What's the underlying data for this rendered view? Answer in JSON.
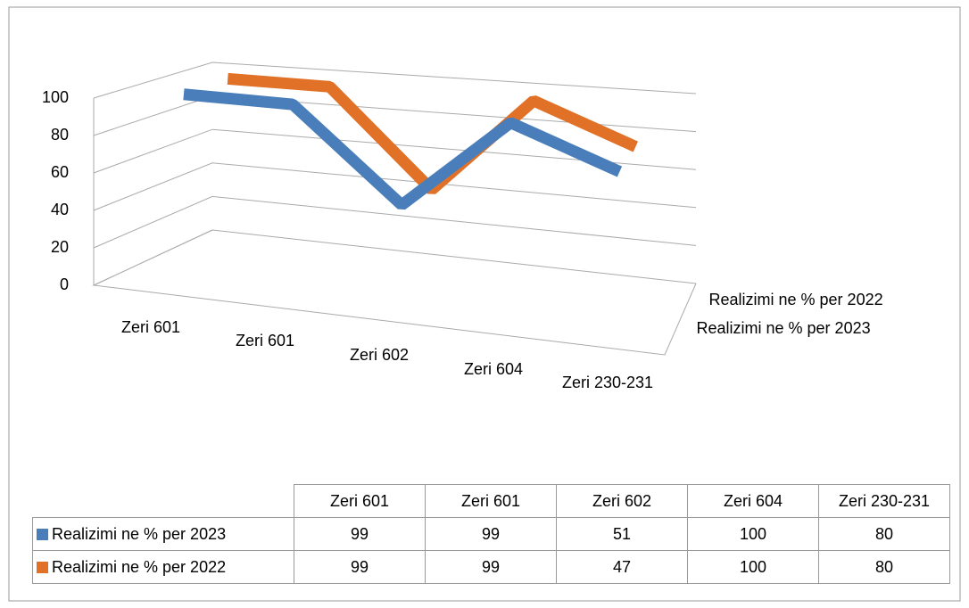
{
  "chart_data": {
    "type": "line3d",
    "categories": [
      "Zeri 601",
      "Zeri 601",
      "Zeri 602",
      "Zeri 604",
      "Zeri 230-231"
    ],
    "series": [
      {
        "name": "Realizimi ne % per 2023",
        "color": "#4a7ebb",
        "values": [
          99,
          99,
          51,
          100,
          80
        ]
      },
      {
        "name": "Realizimi ne % per 2022",
        "color": "#e07127",
        "values": [
          99,
          99,
          47,
          100,
          80
        ]
      }
    ],
    "ylim": [
      0,
      100
    ],
    "yticks": [
      0,
      20,
      40,
      60,
      80,
      100
    ],
    "grid": true,
    "data_table": true
  }
}
